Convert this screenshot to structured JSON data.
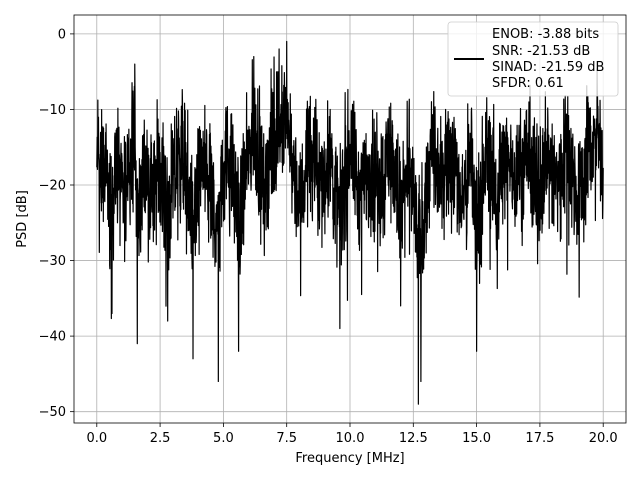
{
  "chart_data": {
    "type": "line",
    "title": "",
    "xlabel": "Frequency [MHz]",
    "ylabel": "PSD [dB]",
    "xlim": [
      -0.9,
      20.9
    ],
    "ylim": [
      -51.5,
      2.5
    ],
    "xticks": [
      0.0,
      2.5,
      5.0,
      7.5,
      10.0,
      12.5,
      15.0,
      17.5,
      20.0
    ],
    "xtick_labels": [
      "0.0",
      "2.5",
      "5.0",
      "7.5",
      "10.0",
      "12.5",
      "15.0",
      "17.5",
      "20.0"
    ],
    "yticks": [
      0,
      -10,
      -20,
      -30,
      -40,
      -50
    ],
    "ytick_labels": [
      "0",
      "−10",
      "−20",
      "−30",
      "−40",
      "−50"
    ],
    "grid": true,
    "legend": {
      "placement": "top-right",
      "lines": [
        "ENOB: -3.88 bits",
        "SNR: -21.53 dB",
        "SINAD: -21.59 dB",
        "SFDR: 0.61"
      ]
    },
    "series": [
      {
        "color": "#000000",
        "style": "dense noisy spectrum, typically -10 to -25 dB",
        "x": [
          0.0,
          0.05,
          0.1,
          0.2,
          0.4,
          0.6,
          0.8,
          1.0,
          1.2,
          1.4,
          1.5,
          1.6,
          1.9,
          2.2,
          2.5,
          2.8,
          3.0,
          3.4,
          3.8,
          4.1,
          4.5,
          4.8,
          5.0,
          5.4,
          5.6,
          6.0,
          6.2,
          6.6,
          6.9,
          7.2,
          7.35,
          7.5,
          7.7,
          8.0,
          8.4,
          8.8,
          9.2,
          9.6,
          10.0,
          10.4,
          10.8,
          11.2,
          11.6,
          12.0,
          12.4,
          12.7,
          12.8,
          13.2,
          13.6,
          14.0,
          14.4,
          14.8,
          15.0,
          15.4,
          15.8,
          16.2,
          16.6,
          17.0,
          17.4,
          17.8,
          18.2,
          18.6,
          19.0,
          19.4,
          19.8,
          20.0
        ],
        "values": [
          -21,
          -6,
          -31,
          -16,
          -27,
          -37,
          -15,
          -34,
          -20,
          -11,
          -4,
          -41,
          -16,
          -33,
          -14,
          -38,
          -25,
          -12,
          -43,
          -15,
          -29,
          -46,
          -12,
          -24,
          -42,
          -13,
          -3,
          -26,
          -11,
          -2,
          -6,
          -1,
          -18,
          -35,
          -10,
          -27,
          -14,
          -39,
          -9,
          -31,
          -17,
          -26,
          -12,
          -36,
          -18,
          -49,
          -46,
          -14,
          -24,
          -10,
          -33,
          -16,
          -42,
          -12,
          -27,
          -15,
          -22,
          -11,
          -30,
          -14,
          -25,
          -7,
          -35,
          -12,
          -6,
          -24
        ]
      }
    ]
  }
}
